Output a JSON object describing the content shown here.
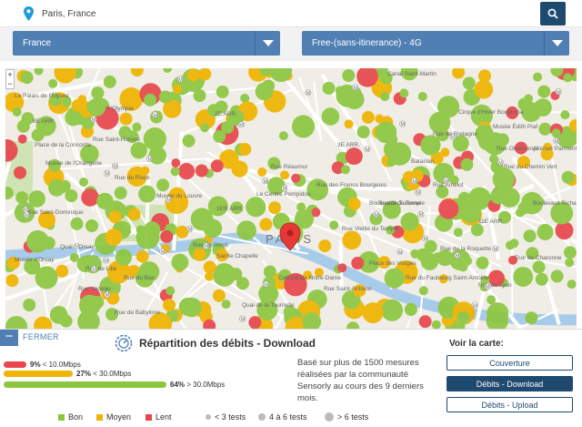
{
  "search": {
    "value": "Paris, France"
  },
  "filters": {
    "country": "France",
    "operator": "Free-(sans-itinerance) - 4G"
  },
  "map": {
    "zoom_in": "+",
    "zoom_out": "−",
    "labels": [
      "Canal Saint-Martin",
      "Le Palais de l'Élysée",
      "L'Olympia",
      "8E ARR.",
      "2E ARR.",
      "Place de la Concorde",
      "Musée de l'Orangerie",
      "Rue de Rivoli",
      "Rue Saint-Honoré",
      "Rue Réaumur",
      "3E ARR.",
      "Cirque d'Hiver Bouglione",
      "Musée Édith Piaf",
      "Bataclan",
      "Boulevard du Temple",
      "Rue du Chemin Vert",
      "Musée du Louvre",
      "1ER ARR.",
      "Le Centre Pompidou",
      "Rue des Francs Bourgeois",
      "Rue Vieille du Temple",
      "Rue de Turenne",
      "Boulevard Richard-Lenoir",
      "11E ARR.",
      "Rue Saint-Dominique",
      "Quai d'Orsay",
      "Rue de Rivoli",
      "PARIS",
      "Place des Vosges",
      "Rue de la Roquette",
      "Rue de Charonne",
      "Musée d'Orsay",
      "Rue de Lille",
      "Sainte Chapelle",
      "Cathédrale Notre-Dame",
      "Rue Vaneau",
      "Rue du Bac",
      "Rue Saint-Antoine",
      "Rue de Lyon",
      "Rue Amelot",
      "Avenue Parmentier",
      "Rue Oberkampf",
      "Rue de Babylone",
      "Quai de la Tournelle",
      "Rue de Bretagne",
      "Rue du Faubourg Saint-Antoine"
    ]
  },
  "panel": {
    "close_label": "FERMER",
    "title": "Répartition des débits - Download",
    "bars": [
      {
        "pct": "9%",
        "range": " < 10.0Mbps",
        "fraction": 0.09,
        "color": "#e8464b"
      },
      {
        "pct": "27%",
        "range": " < 30.0Mbps",
        "fraction": 0.27,
        "color": "#f0b400"
      },
      {
        "pct": "64%",
        "range": " > 30.0Mbps",
        "fraction": 0.64,
        "color": "#8cc63f"
      }
    ],
    "description": "Basé sur plus de 1500 mesures réalisées par la communauté Sensorly au cours des 9 derniers mois.",
    "side_title": "Voir la carte:",
    "buttons": [
      "Couverture",
      "Débits - Download",
      "Débits - Upload"
    ],
    "legend": {
      "good": "Bon",
      "medium": "Moyen",
      "slow": "Lent",
      "small": "< 3 tests",
      "mid": "4 à 6 tests",
      "large": "> 6 tests"
    }
  },
  "colors": {
    "good": "#8cc63f",
    "medium": "#f0b400",
    "slow": "#e8464b",
    "primary": "#1f4a70",
    "accent": "#4f7fb3"
  }
}
